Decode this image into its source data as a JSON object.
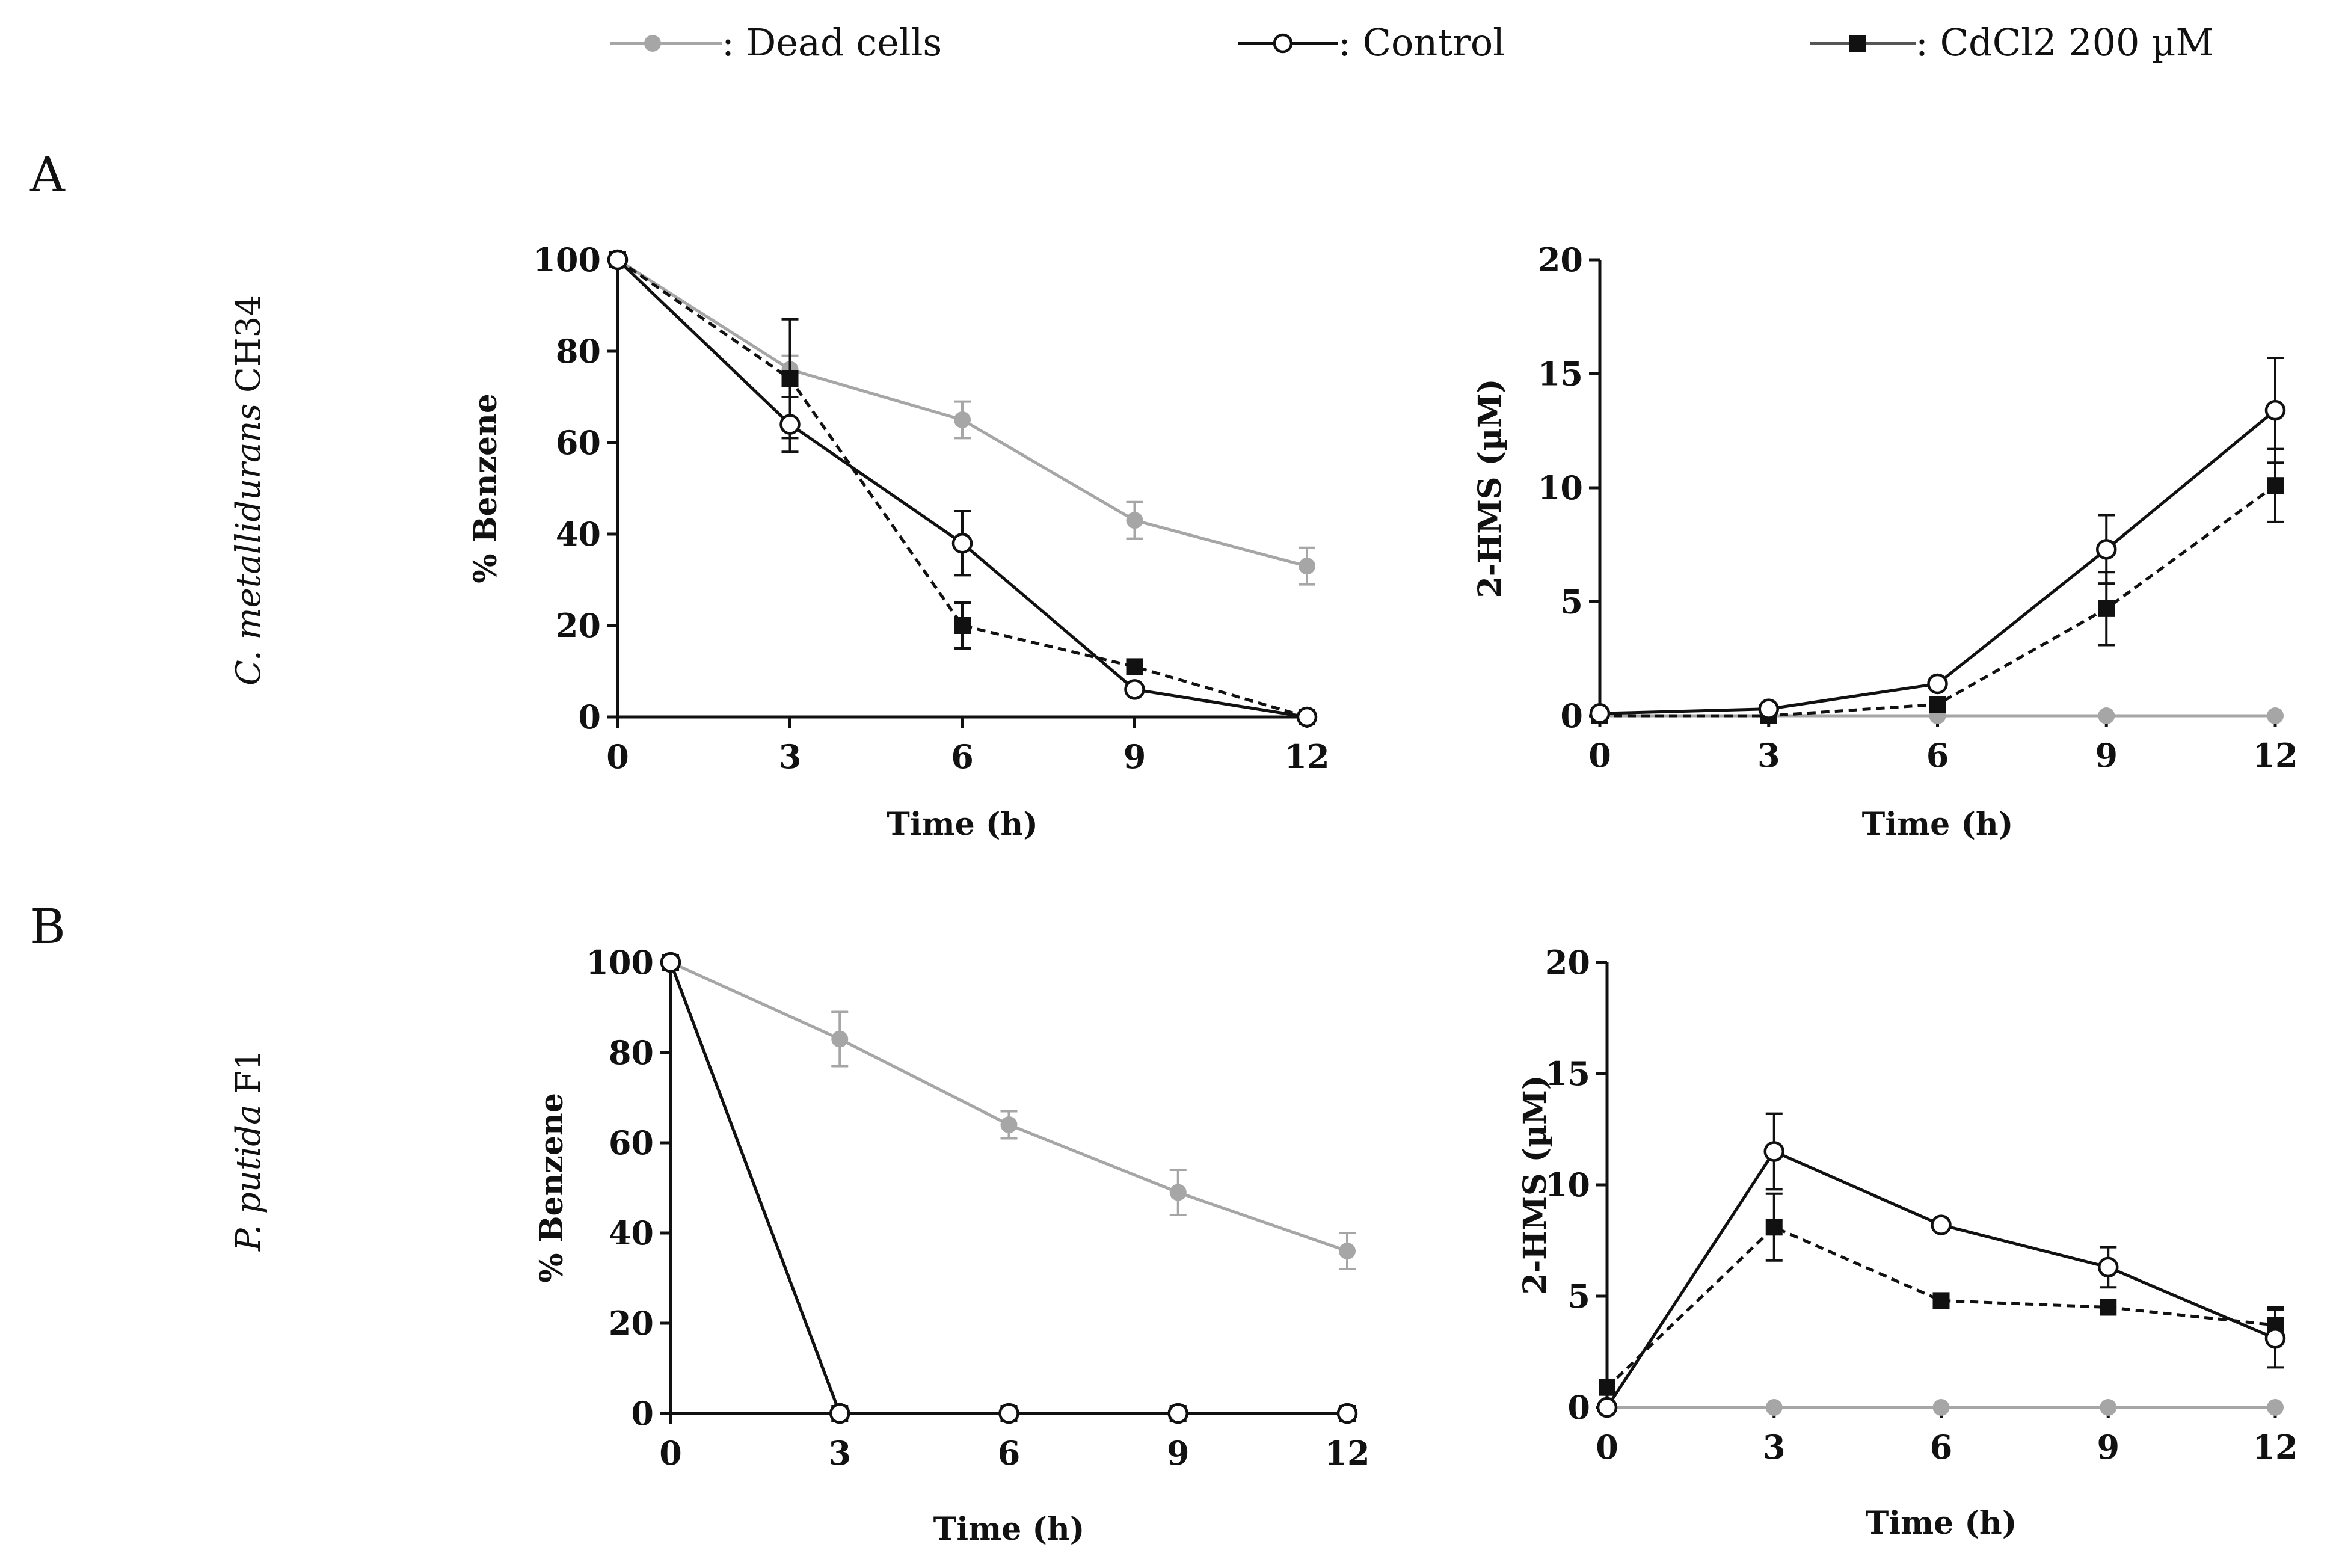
{
  "legend": {
    "dead": ": Dead cells",
    "control": ": Control",
    "cd": ": CdCl2 200 µM"
  },
  "colors": {
    "dead": "#a6a6a6",
    "control": "#111111",
    "cd": "#111111"
  },
  "panels": {
    "A": {
      "label": "A",
      "organism_italic": "C. metallidurans",
      "organism_rest": " CH34"
    },
    "B": {
      "label": "B",
      "organism_italic": "P. putida",
      "organism_rest": " F1"
    }
  },
  "chart_data": [
    {
      "id": "A-benzene",
      "type": "line",
      "xlabel": "Time (h)",
      "ylabel": "% Benzene",
      "x": [
        0,
        3,
        6,
        9,
        12
      ],
      "xticks": [
        0,
        3,
        6,
        9,
        12
      ],
      "ylim": [
        0,
        100
      ],
      "yticks": [
        0,
        20,
        40,
        60,
        80,
        100
      ],
      "series": [
        {
          "name": "Dead cells",
          "key": "dead",
          "values": [
            100,
            76,
            65,
            43,
            33
          ],
          "err": [
            0,
            3,
            4,
            4,
            4
          ]
        },
        {
          "name": "Control",
          "key": "control",
          "values": [
            100,
            64,
            38,
            6,
            0
          ],
          "err": [
            0,
            6,
            7,
            0,
            0
          ]
        },
        {
          "name": "CdCl2 200 µM",
          "key": "cd",
          "values": [
            100,
            74,
            20,
            11,
            0
          ],
          "err": [
            0,
            13,
            5,
            0,
            0
          ]
        }
      ]
    },
    {
      "id": "A-2hms",
      "type": "line",
      "xlabel": "Time (h)",
      "ylabel": "2-HMS (µM)",
      "x": [
        0,
        3,
        6,
        9,
        12
      ],
      "xticks": [
        0,
        3,
        6,
        9,
        12
      ],
      "ylim": [
        0,
        20
      ],
      "yticks": [
        0,
        5,
        10,
        15,
        20
      ],
      "series": [
        {
          "name": "Dead cells",
          "key": "dead",
          "values": [
            0,
            0,
            0,
            0,
            0
          ],
          "err": [
            0,
            0,
            0,
            0,
            0
          ]
        },
        {
          "name": "Control",
          "key": "control",
          "values": [
            0.1,
            0.3,
            1.4,
            7.3,
            13.4
          ],
          "err": [
            0,
            0,
            0,
            1.5,
            2.3
          ]
        },
        {
          "name": "CdCl2 200 µM",
          "key": "cd",
          "values": [
            0,
            0,
            0.5,
            4.7,
            10.1
          ],
          "err": [
            0,
            0,
            0,
            1.6,
            1.6
          ]
        }
      ]
    },
    {
      "id": "B-benzene",
      "type": "line",
      "xlabel": "Time (h)",
      "ylabel": "% Benzene",
      "x": [
        0,
        3,
        6,
        9,
        12
      ],
      "xticks": [
        0,
        3,
        6,
        9,
        12
      ],
      "ylim": [
        0,
        100
      ],
      "yticks": [
        0,
        20,
        40,
        60,
        80,
        100
      ],
      "series": [
        {
          "name": "Dead cells",
          "key": "dead",
          "values": [
            100,
            83,
            64,
            49,
            36
          ],
          "err": [
            0,
            6,
            3,
            5,
            4
          ]
        },
        {
          "name": "Control",
          "key": "control",
          "values": [
            100,
            0,
            0,
            0,
            0
          ],
          "err": [
            0,
            0,
            0,
            0,
            0
          ]
        },
        {
          "name": "CdCl2 200 µM",
          "key": "cd",
          "values": [
            100,
            0,
            0,
            0,
            0
          ],
          "err": [
            0,
            0,
            0,
            0,
            0
          ]
        }
      ]
    },
    {
      "id": "B-2hms",
      "type": "line",
      "xlabel": "Time (h)",
      "ylabel": "2-HMS (µM)",
      "x": [
        0,
        3,
        6,
        9,
        12
      ],
      "xticks": [
        0,
        3,
        6,
        9,
        12
      ],
      "ylim": [
        0,
        20
      ],
      "yticks": [
        0,
        5,
        10,
        15,
        20
      ],
      "series": [
        {
          "name": "Dead cells",
          "key": "dead",
          "values": [
            0,
            0,
            0,
            0,
            0
          ],
          "err": [
            0,
            0,
            0,
            0,
            0
          ]
        },
        {
          "name": "Control",
          "key": "control",
          "values": [
            0,
            11.5,
            8.2,
            6.3,
            3.1
          ],
          "err": [
            0,
            1.7,
            0,
            0.9,
            1.3
          ]
        },
        {
          "name": "CdCl2 200 µM",
          "key": "cd",
          "values": [
            0.9,
            8.1,
            4.8,
            4.5,
            3.7
          ],
          "err": [
            0,
            1.5,
            0,
            0,
            0.8
          ]
        }
      ]
    }
  ]
}
